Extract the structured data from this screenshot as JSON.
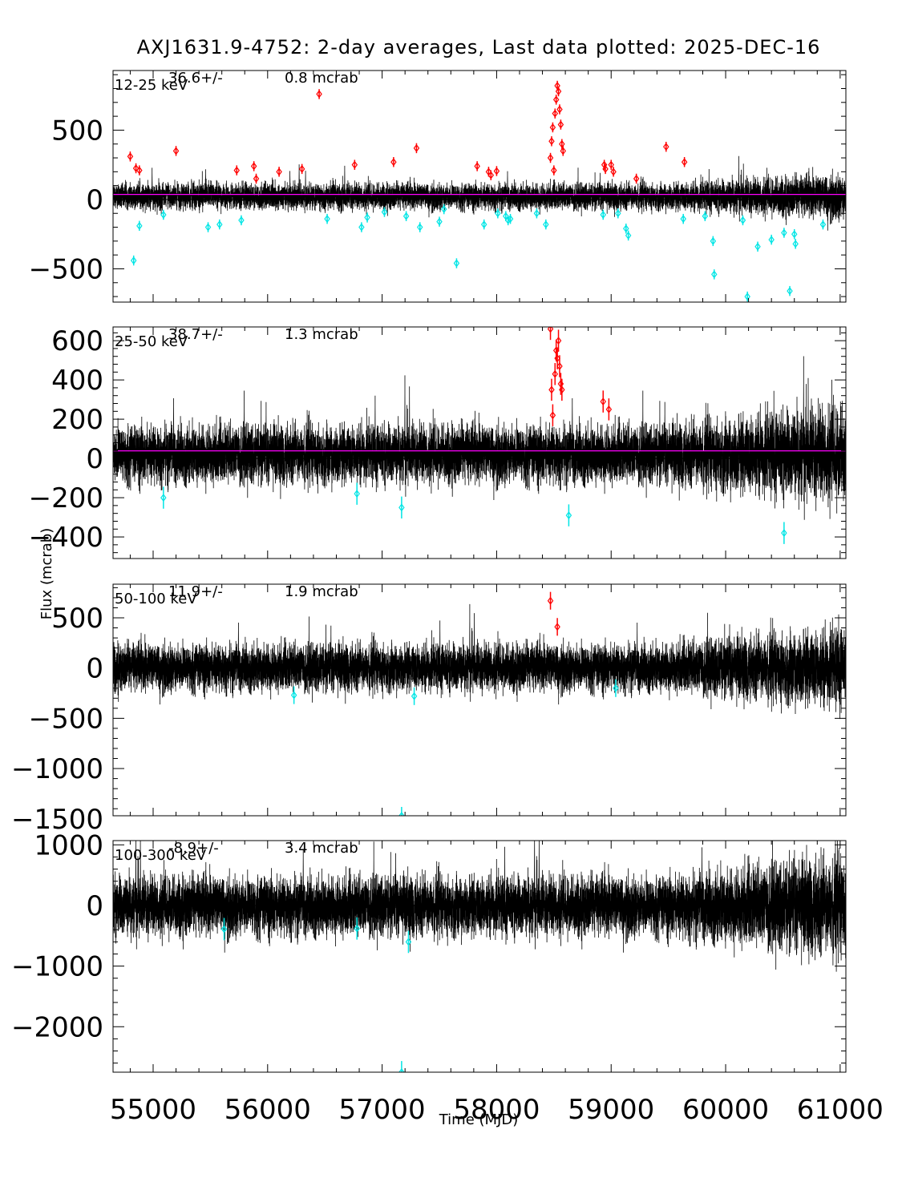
{
  "chart_data": {
    "type": "scatter",
    "title": "AXJ1631.9-4752:  2-day averages,  Last data plotted: 2025-DEC-16",
    "xlabel": "Time (MJD)",
    "ylabel": "Flux (mcrab)",
    "xlim": [
      54650,
      61050
    ],
    "xticks": [
      55000,
      56000,
      57000,
      58000,
      59000,
      60000,
      61000
    ],
    "colors": {
      "normal": "#000000",
      "high": "#ff0000",
      "low": "#00e5e5",
      "mean_line": "#ff00ff",
      "zero_line": "#000000"
    },
    "panels": [
      {
        "band": "12-25 keV",
        "mean_text": "36.6+/-",
        "err_text": "0.8 mcrab",
        "ylim": [
          -740,
          930
        ],
        "yticks": [
          -500,
          0,
          500
        ],
        "mean": 36.6,
        "noise": 45,
        "high": [
          [
            54800,
            310
          ],
          [
            54850,
            225
          ],
          [
            54880,
            210
          ],
          [
            55200,
            350
          ],
          [
            55730,
            210
          ],
          [
            55880,
            240
          ],
          [
            55900,
            150
          ],
          [
            56100,
            200
          ],
          [
            56300,
            220
          ],
          [
            56450,
            760
          ],
          [
            56760,
            250
          ],
          [
            57100,
            270
          ],
          [
            57300,
            370
          ],
          [
            57830,
            240
          ],
          [
            57930,
            200
          ],
          [
            57950,
            175
          ],
          [
            58000,
            205
          ],
          [
            58470,
            300
          ],
          [
            58480,
            420
          ],
          [
            58490,
            520
          ],
          [
            58500,
            210
          ],
          [
            58510,
            620
          ],
          [
            58520,
            720
          ],
          [
            58530,
            820
          ],
          [
            58540,
            780
          ],
          [
            58550,
            650
          ],
          [
            58560,
            540
          ],
          [
            58570,
            400
          ],
          [
            58580,
            350
          ],
          [
            58940,
            250
          ],
          [
            58950,
            220
          ],
          [
            59000,
            250
          ],
          [
            59020,
            200
          ],
          [
            59220,
            150
          ],
          [
            59480,
            380
          ],
          [
            59640,
            270
          ]
        ],
        "low": [
          [
            54830,
            -440
          ],
          [
            54880,
            -190
          ],
          [
            55090,
            -110
          ],
          [
            55480,
            -200
          ],
          [
            55580,
            -180
          ],
          [
            55770,
            -150
          ],
          [
            56520,
            -140
          ],
          [
            56820,
            -200
          ],
          [
            56870,
            -130
          ],
          [
            57020,
            -90
          ],
          [
            57210,
            -120
          ],
          [
            57330,
            -200
          ],
          [
            57500,
            -160
          ],
          [
            57540,
            -70
          ],
          [
            57650,
            -460
          ],
          [
            57890,
            -180
          ],
          [
            58010,
            -100
          ],
          [
            58080,
            -120
          ],
          [
            58100,
            -150
          ],
          [
            58120,
            -140
          ],
          [
            58350,
            -100
          ],
          [
            58430,
            -180
          ],
          [
            58930,
            -110
          ],
          [
            59060,
            -100
          ],
          [
            59130,
            -210
          ],
          [
            59150,
            -260
          ],
          [
            59630,
            -140
          ],
          [
            59820,
            -120
          ],
          [
            59890,
            -300
          ],
          [
            59900,
            -540
          ],
          [
            60150,
            -150
          ],
          [
            60190,
            -700
          ],
          [
            60280,
            -340
          ],
          [
            60400,
            -290
          ],
          [
            60510,
            -240
          ],
          [
            60560,
            -660
          ],
          [
            60600,
            -250
          ],
          [
            60610,
            -320
          ],
          [
            60850,
            -180
          ]
        ]
      },
      {
        "band": "25-50 keV",
        "mean_text": "38.7+/-",
        "err_text": "1.3 mcrab",
        "ylim": [
          -510,
          670
        ],
        "yticks": [
          -400,
          -200,
          0,
          200,
          400,
          600
        ],
        "mean": 38.7,
        "noise": 70,
        "high": [
          [
            58470,
            660
          ],
          [
            58480,
            350
          ],
          [
            58490,
            220
          ],
          [
            58510,
            430
          ],
          [
            58520,
            550
          ],
          [
            58530,
            510
          ],
          [
            58540,
            600
          ],
          [
            58550,
            470
          ],
          [
            58560,
            380
          ],
          [
            58570,
            350
          ],
          [
            58930,
            290
          ],
          [
            58980,
            250
          ]
        ],
        "low": [
          [
            55090,
            -200
          ],
          [
            56780,
            -180
          ],
          [
            57170,
            -250
          ],
          [
            58630,
            -290
          ],
          [
            60510,
            -380
          ]
        ]
      },
      {
        "band": "50-100 keV",
        "mean_text": "11.9+/-",
        "err_text": "1.9 mcrab",
        "ylim": [
          -1470,
          835
        ],
        "yticks": [
          -1500,
          -1000,
          -500,
          0,
          500
        ],
        "mean": 11.9,
        "noise": 110,
        "high": [
          [
            58470,
            670
          ],
          [
            58530,
            410
          ]
        ],
        "low": [
          [
            56230,
            -270
          ],
          [
            57280,
            -280
          ],
          [
            59040,
            -200
          ],
          [
            57170,
            -1470
          ]
        ]
      },
      {
        "band": "100-300 keV",
        "mean_text": "-8.9+/-",
        "err_text": "3.4 mcrab",
        "ylim": [
          -2750,
          1070
        ],
        "yticks": [
          -2000,
          -1000,
          0,
          1000
        ],
        "mean": -8.9,
        "noise": 230,
        "high": [],
        "low": [
          [
            55620,
            -390
          ],
          [
            56780,
            -380
          ],
          [
            57230,
            -600
          ],
          [
            57170,
            -2750
          ]
        ]
      }
    ]
  }
}
